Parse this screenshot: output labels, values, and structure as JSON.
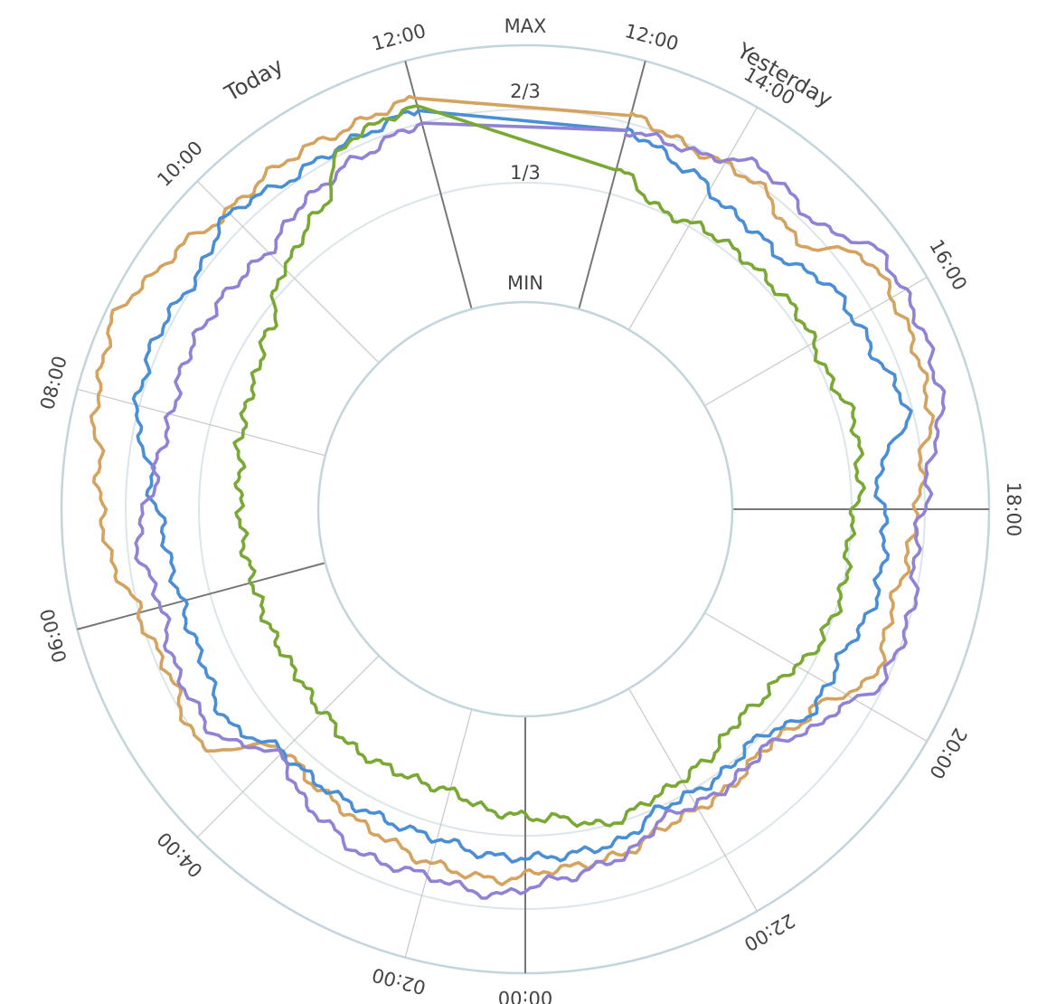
{
  "chart_data": {
    "type": "line",
    "polar": true,
    "levels": [
      "MIN",
      "1/3",
      "2/3",
      "MAX"
    ],
    "period_labels": [
      "Today",
      "Yesterday"
    ],
    "time_ticks": [
      {
        "label": "12:00",
        "angle_deg": -15
      },
      {
        "label": "10:00",
        "angle_deg": -45
      },
      {
        "label": "08:00",
        "angle_deg": -75
      },
      {
        "label": "06:00",
        "angle_deg": -105
      },
      {
        "label": "04:00",
        "angle_deg": -135
      },
      {
        "label": "02:00",
        "angle_deg": -165
      },
      {
        "label": "00:00",
        "angle_deg": 180
      },
      {
        "label": "22:00",
        "angle_deg": 150
      },
      {
        "label": "20:00",
        "angle_deg": 120
      },
      {
        "label": "18:00",
        "angle_deg": 90
      },
      {
        "label": "16:00",
        "angle_deg": 60
      },
      {
        "label": "14:00",
        "angle_deg": 30
      },
      {
        "label": "12:00",
        "angle_deg": 15
      }
    ],
    "major_ticks": [
      "12:00",
      "06:00",
      "00:00",
      "18:00"
    ],
    "series_angles_deg": [
      15,
      25,
      35,
      45,
      55,
      65,
      75,
      85,
      95,
      105,
      115,
      125,
      135,
      145,
      155,
      165,
      175,
      185,
      195,
      205,
      215,
      225,
      235,
      245,
      255,
      265,
      275,
      285,
      295,
      305,
      315,
      325,
      335,
      345
    ],
    "series": [
      {
        "color": "#d4a35f",
        "values": [
          0.78,
          0.74,
          0.75,
          0.68,
          0.85,
          0.84,
          0.82,
          0.74,
          0.7,
          0.67,
          0.7,
          0.56,
          0.51,
          0.54,
          0.54,
          0.59,
          0.6,
          0.64,
          0.62,
          0.58,
          0.55,
          0.52,
          0.76,
          0.72,
          0.75,
          0.83,
          0.86,
          0.92,
          0.96,
          0.89,
          0.83,
          0.84,
          0.83,
          0.85
        ]
      },
      {
        "color": "#4a8fd6",
        "values": [
          0.72,
          0.66,
          0.6,
          0.59,
          0.67,
          0.68,
          0.73,
          0.57,
          0.6,
          0.6,
          0.55,
          0.56,
          0.46,
          0.48,
          0.47,
          0.54,
          0.55,
          0.55,
          0.52,
          0.52,
          0.53,
          0.53,
          0.62,
          0.58,
          0.58,
          0.6,
          0.66,
          0.76,
          0.78,
          0.76,
          0.82,
          0.77,
          0.78,
          0.8
        ]
      },
      {
        "color": "#9182d6",
        "values": [
          0.72,
          0.73,
          0.81,
          0.78,
          0.9,
          0.89,
          0.87,
          0.77,
          0.72,
          0.75,
          0.74,
          0.62,
          0.51,
          0.53,
          0.51,
          0.6,
          0.64,
          0.7,
          0.67,
          0.68,
          0.63,
          0.55,
          0.69,
          0.69,
          0.66,
          0.71,
          0.64,
          0.62,
          0.64,
          0.63,
          0.61,
          0.67,
          0.71,
          0.75
        ]
      },
      {
        "color": "#7aa834",
        "values": [
          0.56,
          0.47,
          0.49,
          0.49,
          0.5,
          0.48,
          0.52,
          0.5,
          0.46,
          0.47,
          0.45,
          0.38,
          0.36,
          0.4,
          0.42,
          0.46,
          0.4,
          0.38,
          0.33,
          0.33,
          0.34,
          0.31,
          0.29,
          0.29,
          0.29,
          0.3,
          0.31,
          0.34,
          0.36,
          0.41,
          0.52,
          0.6,
          0.79,
          0.82
        ]
      }
    ]
  }
}
